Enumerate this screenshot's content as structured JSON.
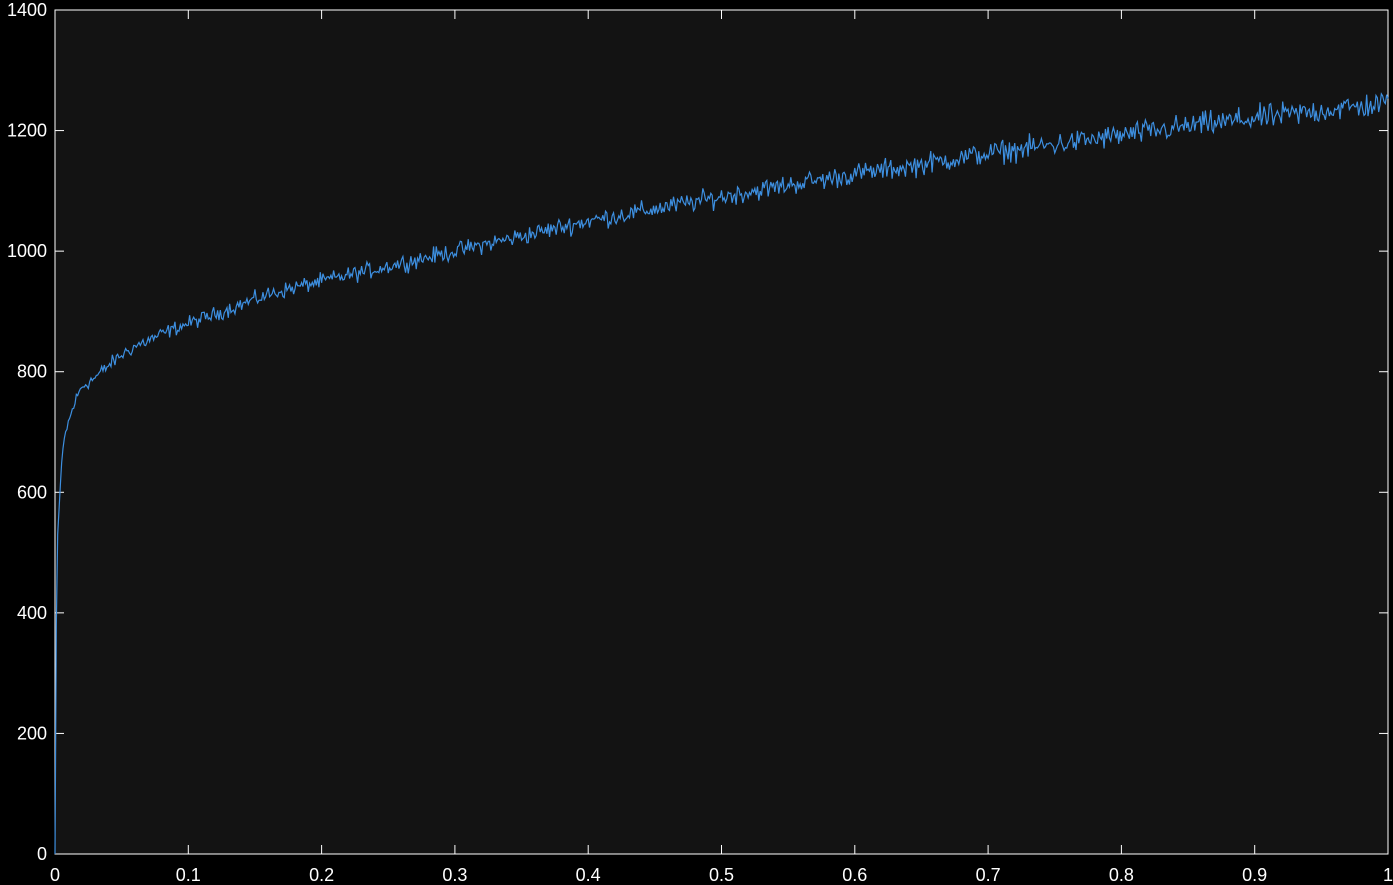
{
  "chart_data": {
    "type": "line",
    "title": "",
    "xlabel": "",
    "ylabel": "",
    "xlim": [
      0,
      1
    ],
    "ylim": [
      0,
      1400
    ],
    "x_ticks": [
      0,
      0.1,
      0.2,
      0.3,
      0.4,
      0.5,
      0.6,
      0.7,
      0.8,
      0.9,
      1
    ],
    "x_tick_labels": [
      "0",
      "0.1",
      "0.2",
      "0.3",
      "0.4",
      "0.5",
      "0.6",
      "0.7",
      "0.8",
      "0.9",
      "1"
    ],
    "y_ticks": [
      0,
      200,
      400,
      600,
      800,
      1000,
      1200,
      1400
    ],
    "y_tick_labels": [
      "0",
      "200",
      "400",
      "600",
      "800",
      "1000",
      "1200",
      "1400"
    ],
    "grid": false,
    "series": [
      {
        "color": "#3d8fe0",
        "x": [
          0,
          0.001,
          0.002,
          0.004,
          0.006,
          0.008,
          0.01,
          0.015,
          0.02,
          0.03,
          0.04,
          0.05,
          0.06,
          0.07,
          0.08,
          0.09,
          0.1,
          0.12,
          0.14,
          0.16,
          0.18,
          0.2,
          0.22,
          0.24,
          0.26,
          0.28,
          0.3,
          0.32,
          0.34,
          0.36,
          0.38,
          0.4,
          0.42,
          0.44,
          0.46,
          0.48,
          0.5,
          0.52,
          0.54,
          0.56,
          0.58,
          0.6,
          0.62,
          0.64,
          0.66,
          0.68,
          0.7,
          0.72,
          0.74,
          0.76,
          0.78,
          0.8,
          0.82,
          0.84,
          0.86,
          0.88,
          0.9,
          0.92,
          0.94,
          0.96,
          0.98,
          1
        ],
        "y": [
          0,
          380,
          530,
          610,
          670,
          700,
          715,
          750,
          775,
          790,
          810,
          828,
          842,
          852,
          862,
          872,
          880,
          895,
          912,
          928,
          940,
          950,
          960,
          970,
          980,
          990,
          1000,
          1010,
          1020,
          1030,
          1040,
          1050,
          1058,
          1066,
          1074,
          1082,
          1090,
          1098,
          1106,
          1114,
          1120,
          1128,
          1134,
          1140,
          1148,
          1155,
          1162,
          1168,
          1174,
          1180,
          1186,
          1192,
          1198,
          1204,
          1210,
          1215,
          1220,
          1225,
          1230,
          1236,
          1240,
          1245
        ],
        "noise_amplitude": 18
      }
    ]
  }
}
